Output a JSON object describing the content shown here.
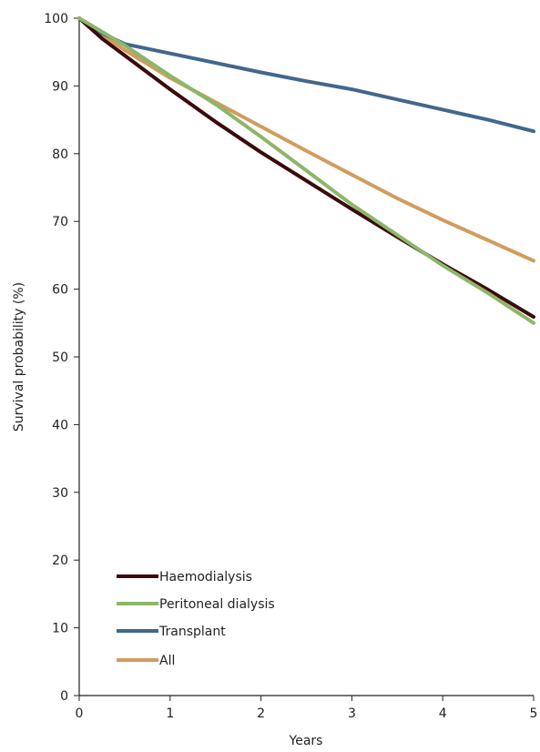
{
  "chart_data": {
    "type": "line",
    "title": "",
    "xlabel": "Years",
    "ylabel": "Survival probability (%)",
    "xlim": [
      0,
      5
    ],
    "ylim": [
      0,
      100
    ],
    "xticks": [
      "0",
      "1",
      "2",
      "3",
      "4",
      "5"
    ],
    "yticks": [
      "0",
      "10",
      "20",
      "30",
      "40",
      "50",
      "60",
      "70",
      "80",
      "90",
      "100"
    ],
    "grid": false,
    "legend": "bottom-left",
    "series": [
      {
        "name": "Haemodialysis",
        "color": "#3b0a0a",
        "x": [
          0,
          0.25,
          0.5,
          1,
          1.5,
          2,
          2.5,
          3,
          3.5,
          4,
          4.5,
          5
        ],
        "y": [
          100,
          97,
          94.5,
          89.5,
          84.7,
          80.2,
          76,
          71.8,
          67.7,
          63.7,
          59.9,
          55.9
        ]
      },
      {
        "name": "Peritoneal dialysis",
        "color": "#8db669",
        "x": [
          0,
          0.25,
          0.5,
          1,
          1.5,
          2,
          2.5,
          3,
          3.5,
          4,
          4.5,
          5
        ],
        "y": [
          100,
          98,
          96,
          91.5,
          87.3,
          82.5,
          77.5,
          72.5,
          68,
          63.5,
          59.4,
          55
        ]
      },
      {
        "name": "Transplant",
        "color": "#41678c",
        "x": [
          0,
          0.25,
          0.5,
          1,
          1.5,
          2,
          2.5,
          3,
          3.5,
          4,
          4.5,
          5
        ],
        "y": [
          100,
          97.8,
          96.2,
          94.8,
          93.4,
          92,
          90.7,
          89.5,
          88,
          86.5,
          85,
          83.3
        ]
      },
      {
        "name": "All",
        "color": "#d19c5f",
        "x": [
          0,
          0.25,
          0.5,
          1,
          1.5,
          2,
          2.5,
          3,
          3.5,
          4,
          4.5,
          5
        ],
        "y": [
          100,
          97.6,
          95.3,
          91.2,
          87.6,
          84,
          80.4,
          76.9,
          73.4,
          70.2,
          67.2,
          64.2
        ]
      }
    ]
  }
}
